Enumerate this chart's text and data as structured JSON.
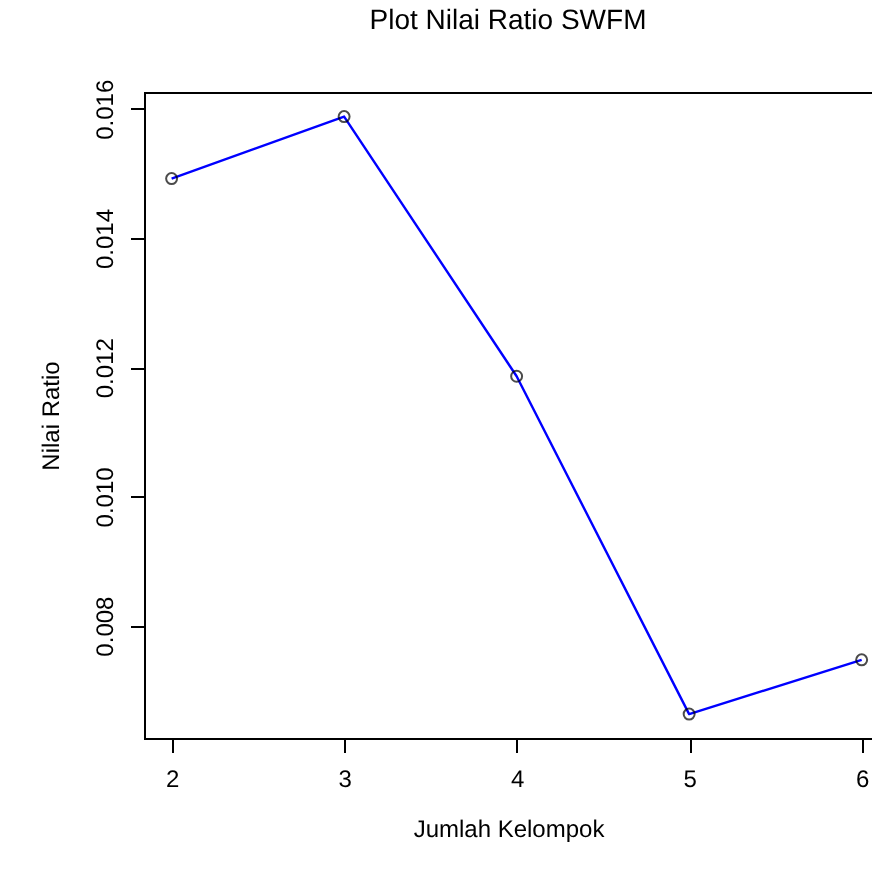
{
  "chart_data": {
    "type": "line",
    "title": "Plot Nilai Ratio SWFM",
    "xlabel": "Jumlah Kelompok",
    "ylabel": "Nilai Ratio",
    "x": [
      2,
      3,
      4,
      5,
      6
    ],
    "series": [
      {
        "color": "#0000ff",
        "values": [
          0.01492,
          0.01588,
          0.01186,
          0.00663,
          0.00747
        ]
      }
    ],
    "xlim": [
      1.84,
      6.06
    ],
    "xticks": [
      2,
      3,
      4,
      5,
      6
    ],
    "ylim": [
      0.00626,
      0.01626
    ],
    "yticks": [
      {
        "value": 0.008,
        "label": "0.008"
      },
      {
        "value": 0.01,
        "label": "0.010"
      },
      {
        "value": 0.012,
        "label": "0.012"
      },
      {
        "value": 0.014,
        "label": "0.014"
      },
      {
        "value": 0.016,
        "label": "0.016"
      }
    ],
    "marker": "circle",
    "line_style": "solid",
    "grid": false
  }
}
